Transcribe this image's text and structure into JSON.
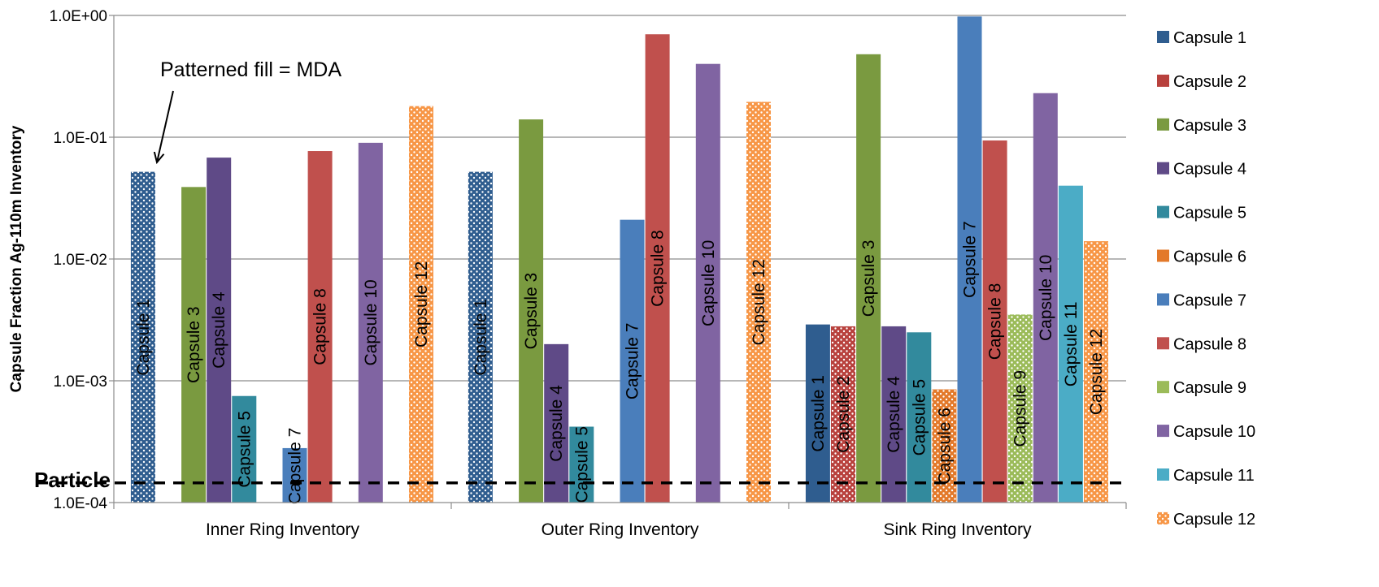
{
  "chart_data": {
    "type": "bar",
    "ylabel": "Capsule Fraction Ag-110m Inventory",
    "yscale": "log",
    "ylim": [
      0.0001,
      1.0
    ],
    "yticks": [
      "1.0E+00",
      "1.0E-01",
      "1.0E-02",
      "1.0E-03",
      "1.0E-04"
    ],
    "categories": [
      "Inner Ring Inventory",
      "Outer Ring Inventory",
      "Sink Ring Inventory"
    ],
    "grid": "horizontal",
    "legend_position": "right",
    "series": [
      {
        "name": "Capsule 1",
        "color": "#2F5D8F",
        "values": [
          0.052,
          0.052,
          0.0029
        ],
        "mda": [
          true,
          true,
          false
        ]
      },
      {
        "name": "Capsule 2",
        "color": "#B8413D",
        "values": [
          null,
          null,
          0.0028
        ],
        "mda": [
          false,
          false,
          true
        ]
      },
      {
        "name": "Capsule 3",
        "color": "#7A9A40",
        "values": [
          0.039,
          0.14,
          0.48
        ],
        "mda": [
          false,
          false,
          false
        ]
      },
      {
        "name": "Capsule 4",
        "color": "#5F4A87",
        "values": [
          0.068,
          0.002,
          0.0028
        ],
        "mda": [
          false,
          false,
          false
        ]
      },
      {
        "name": "Capsule 5",
        "color": "#328A9D",
        "values": [
          0.00075,
          0.00042,
          0.0025
        ],
        "mda": [
          false,
          false,
          false
        ]
      },
      {
        "name": "Capsule 6",
        "color": "#E3792A",
        "values": [
          null,
          null,
          0.00085
        ],
        "mda": [
          false,
          false,
          true
        ]
      },
      {
        "name": "Capsule 7",
        "color": "#4A7EBB",
        "values": [
          0.00028,
          0.021,
          0.98
        ],
        "mda": [
          false,
          false,
          false
        ]
      },
      {
        "name": "Capsule 8",
        "color": "#C0504D",
        "values": [
          0.077,
          0.7,
          0.094
        ],
        "mda": [
          false,
          false,
          false
        ]
      },
      {
        "name": "Capsule 9",
        "color": "#9BBB59",
        "values": [
          null,
          null,
          0.0035
        ],
        "mda": [
          false,
          false,
          true
        ]
      },
      {
        "name": "Capsule 10",
        "color": "#8064A2",
        "values": [
          0.09,
          0.4,
          0.23
        ],
        "mda": [
          false,
          false,
          false
        ]
      },
      {
        "name": "Capsule 11",
        "color": "#4BACC6",
        "values": [
          null,
          null,
          0.04
        ],
        "mda": [
          false,
          false,
          false
        ]
      },
      {
        "name": "Capsule 12",
        "color": "#F79646",
        "values": [
          0.18,
          0.195,
          0.014
        ],
        "mda": [
          true,
          true,
          true
        ]
      }
    ],
    "reference_line": {
      "label": "Particle",
      "value": 0.000145,
      "style": "dashed"
    },
    "annotation": {
      "text": "Patterned fill = MDA",
      "points_to": "Capsule 1, Inner Ring Inventory"
    }
  }
}
